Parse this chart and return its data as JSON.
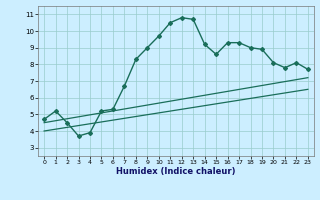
{
  "xlabel": "Humidex (Indice chaleur)",
  "background_color": "#cceeff",
  "grid_color": "#99cccc",
  "line_color": "#1a6e5a",
  "xlim": [
    -0.5,
    23.5
  ],
  "ylim": [
    2.5,
    11.5
  ],
  "xticks": [
    0,
    1,
    2,
    3,
    4,
    5,
    6,
    7,
    8,
    9,
    10,
    11,
    12,
    13,
    14,
    15,
    16,
    17,
    18,
    19,
    20,
    21,
    22,
    23
  ],
  "yticks": [
    3,
    4,
    5,
    6,
    7,
    8,
    9,
    10,
    11
  ],
  "line1_x": [
    0,
    1,
    2,
    3,
    4,
    5,
    6,
    7,
    8,
    9,
    10,
    11,
    12,
    13,
    14,
    15,
    16,
    17,
    18,
    19,
    20,
    21,
    22,
    23
  ],
  "line1_y": [
    4.7,
    5.2,
    4.5,
    3.7,
    3.9,
    5.2,
    5.3,
    6.7,
    8.3,
    9.0,
    9.7,
    10.5,
    10.8,
    10.7,
    9.2,
    8.6,
    9.3,
    9.3,
    9.0,
    8.9,
    8.1,
    7.8,
    8.1,
    7.7
  ],
  "line2_x": [
    0,
    23
  ],
  "line2_y": [
    4.5,
    7.2
  ],
  "line3_x": [
    0,
    23
  ],
  "line3_y": [
    4.0,
    6.5
  ]
}
